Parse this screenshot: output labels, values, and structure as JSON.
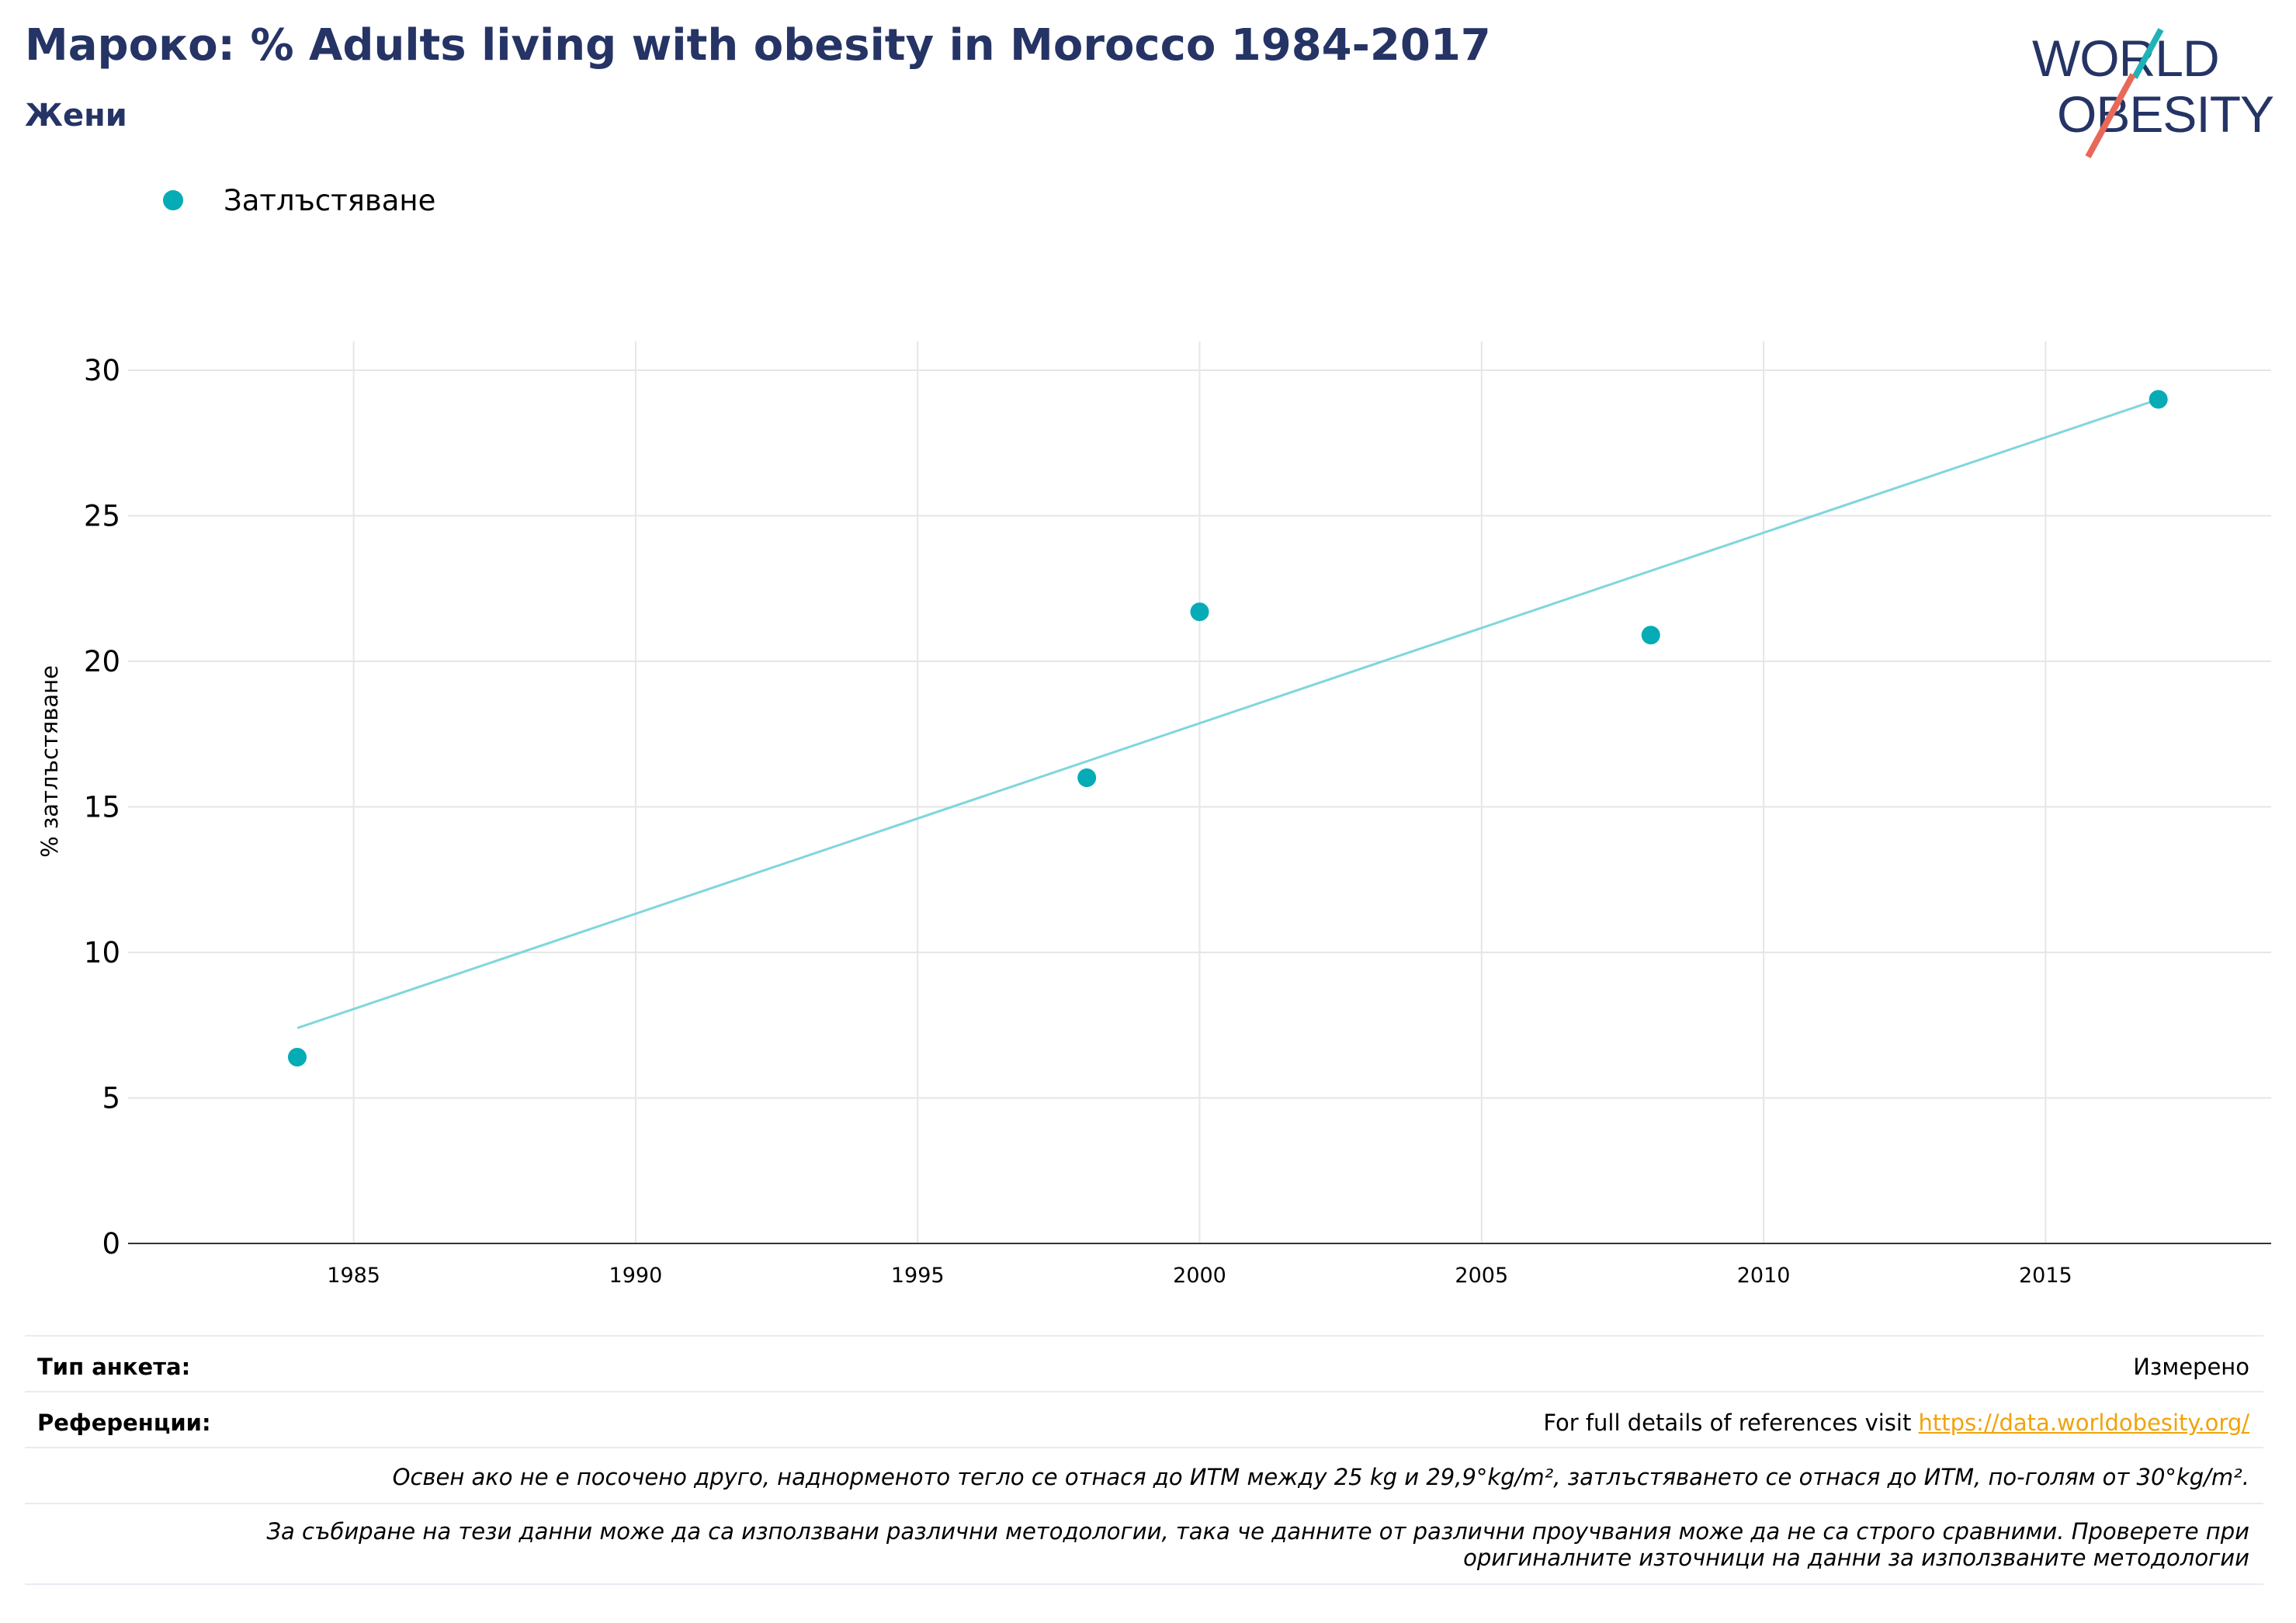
{
  "header": {
    "title": "Мароко: % Adults living with obesity in Morocco 1984-2017",
    "subtitle": "Жени"
  },
  "logo": {
    "line1": "WORLD",
    "line2": "OBESITY"
  },
  "legend": {
    "label": "Затлъстяване"
  },
  "colors": {
    "title": "#253465",
    "series": "#06acb5",
    "trend": "#7fd6db",
    "link": "#f0a30a",
    "logo_accent": "#e8685a",
    "logo_teal": "#1fb3b8"
  },
  "chart_data": {
    "type": "scatter",
    "title": "Мароко: % Adults living with obesity in Morocco 1984-2017",
    "subtitle": "Жени",
    "ylabel": "% затлъстяване",
    "xlabel": "",
    "xlim": [
      1981,
      2019
    ],
    "ylim": [
      0,
      30
    ],
    "x_ticks": [
      1985,
      1990,
      1995,
      2000,
      2005,
      2010,
      2015
    ],
    "y_ticks": [
      0,
      5,
      10,
      15,
      20,
      25,
      30
    ],
    "grid": true,
    "legend_position": "top-left",
    "series": [
      {
        "name": "Затлъстяване",
        "points": [
          {
            "x": 1984,
            "y": 6.4
          },
          {
            "x": 1998,
            "y": 16.0
          },
          {
            "x": 2000,
            "y": 21.7
          },
          {
            "x": 2008,
            "y": 20.9
          },
          {
            "x": 2017,
            "y": 29.0
          }
        ]
      }
    ],
    "trendline": {
      "x": [
        1984,
        2017
      ],
      "y": [
        7.4,
        29.0
      ]
    }
  },
  "info": {
    "survey_type_label": "Тип анкета:",
    "survey_type_value": "Измерено",
    "references_label": "Референции:",
    "references_text": "For full details of references visit ",
    "references_link": "https://data.worldobesity.org/",
    "note1": "Освен ако не е посочено друго, наднорменото тегло се отнася до ИТМ между 25 kg и 29,9°kg/m², затлъстяването се отнася до ИТМ, по-голям от 30°kg/m².",
    "note2": "За събиране на тези данни може да са използвани различни методологии, така че данните от различни проучвания може да не са строго сравними. Проверете при оригиналните източници на данни за използваните методологии"
  }
}
